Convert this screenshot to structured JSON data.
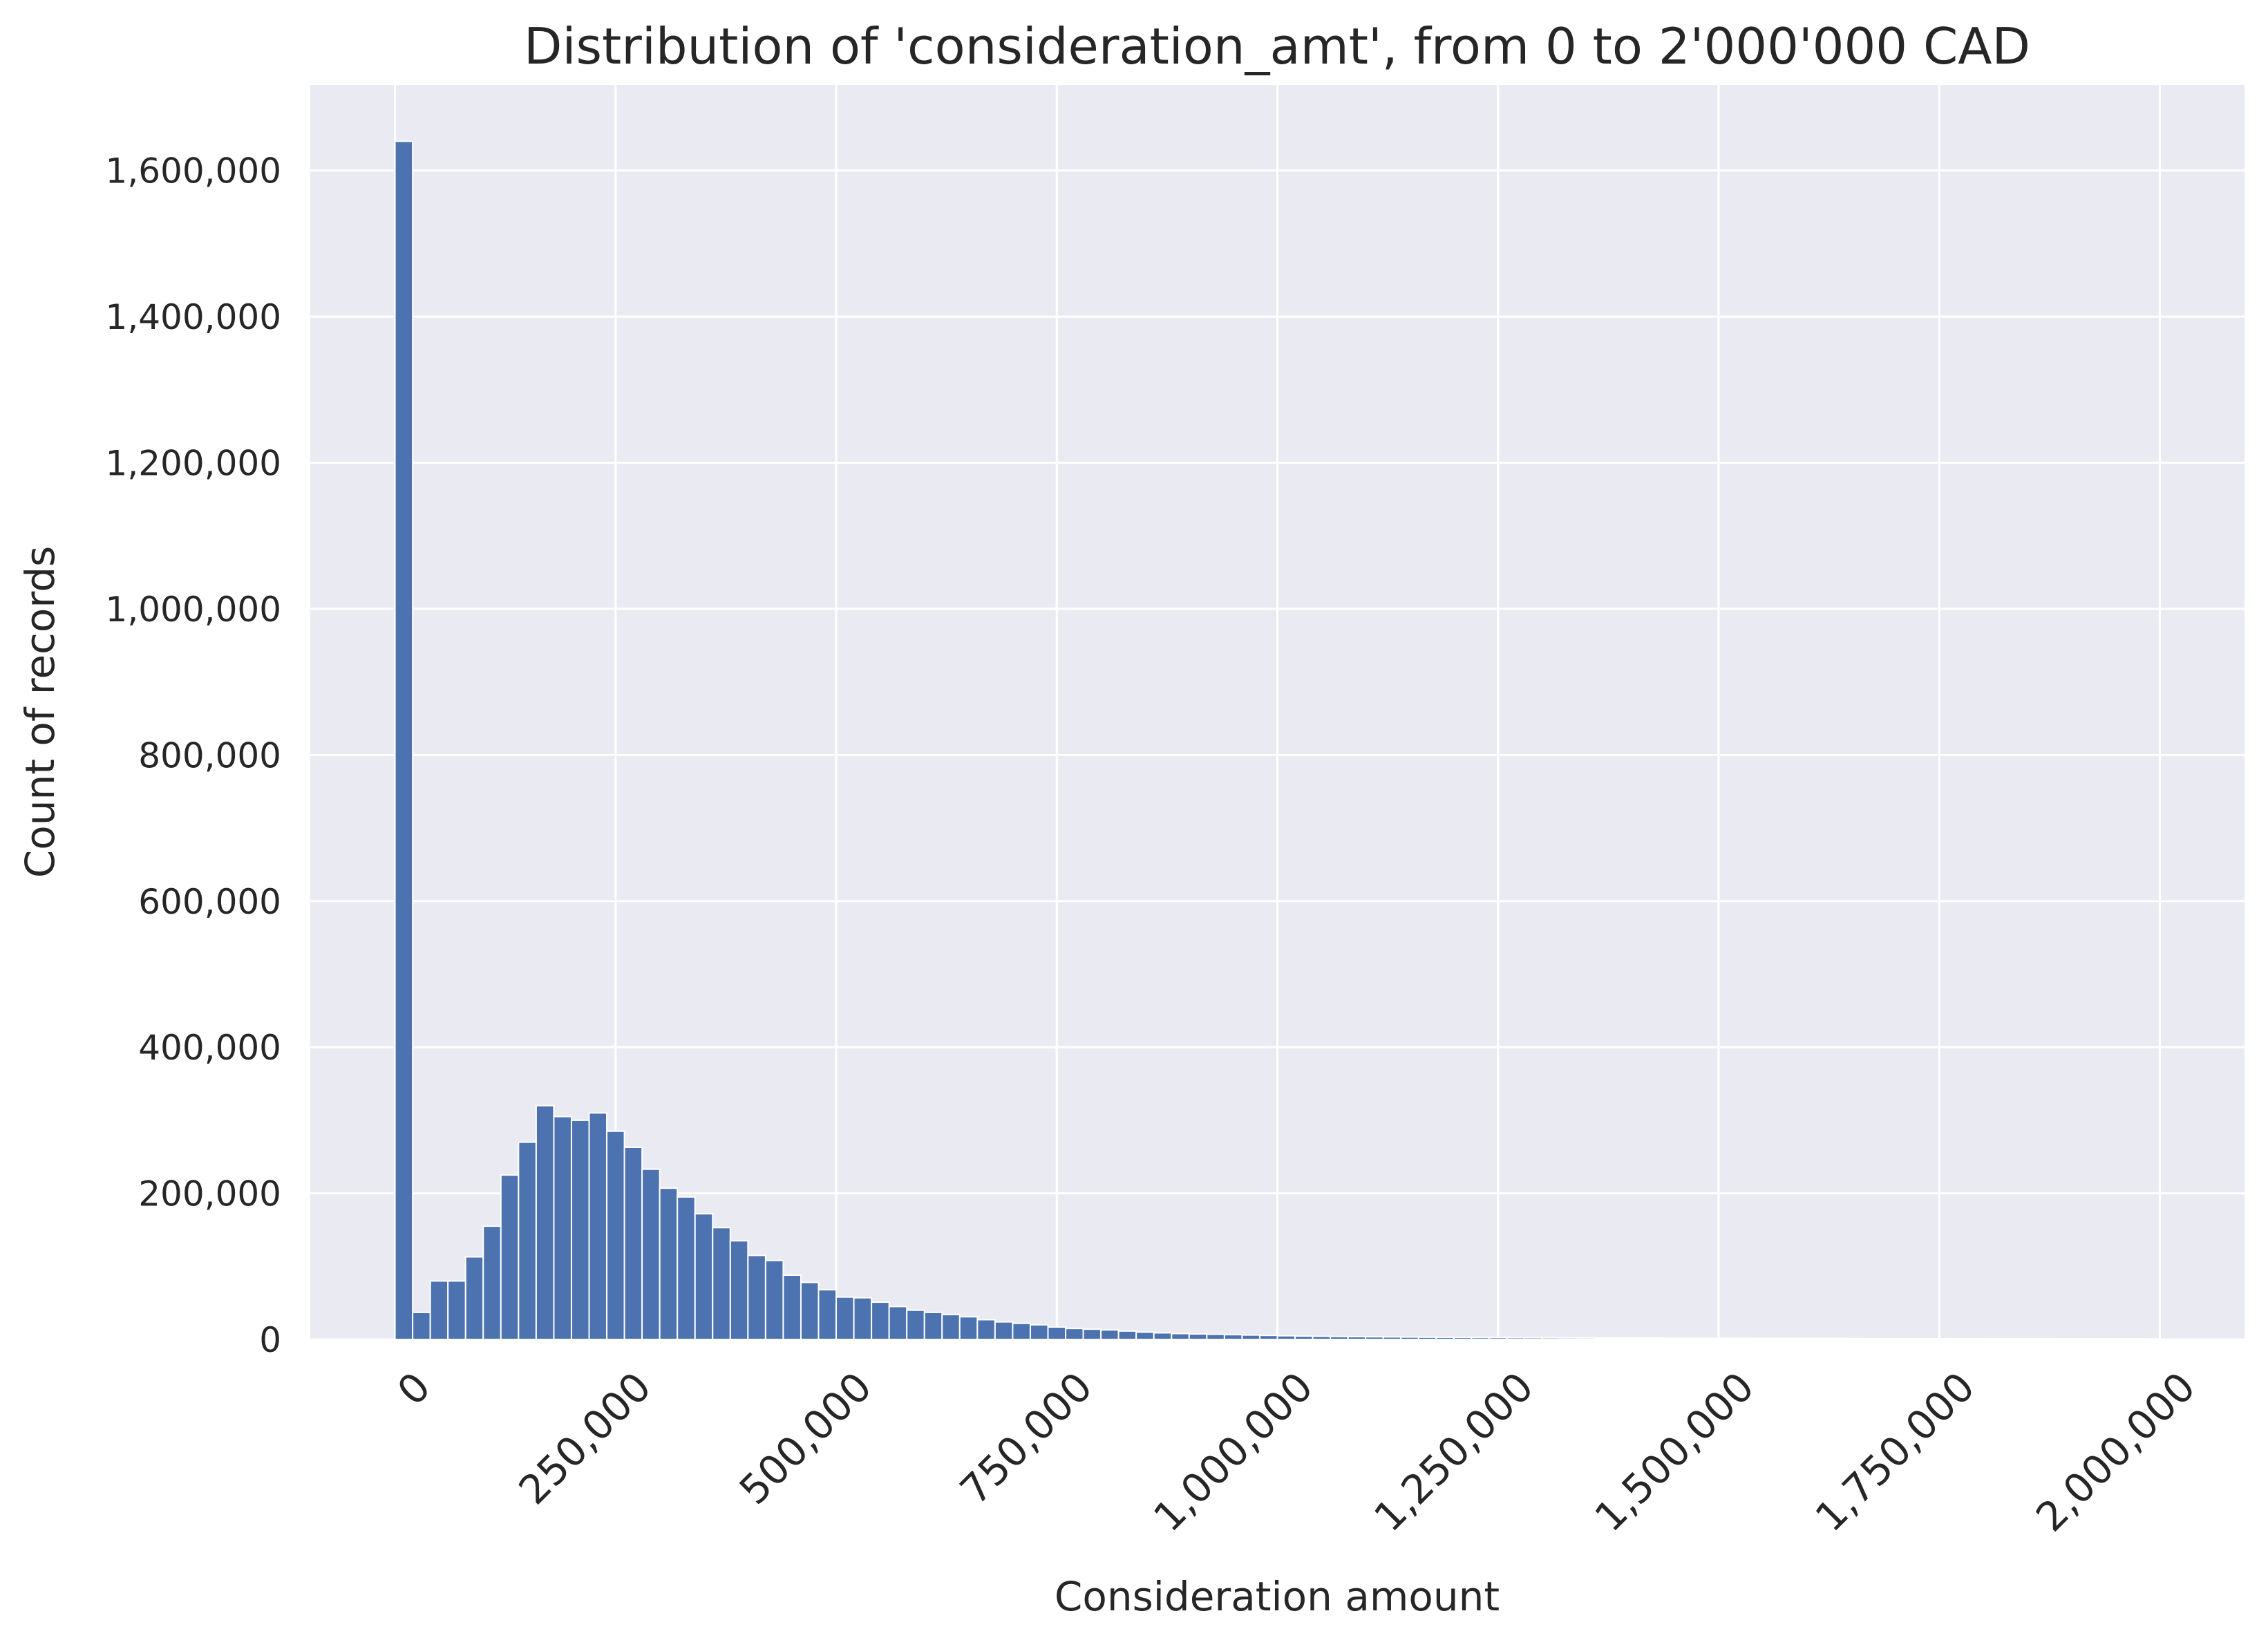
{
  "chart_data": {
    "type": "bar",
    "title": "Distribution of 'consideration_amt', from 0 to 2'000'000 CAD",
    "xlabel": "Consideration amount",
    "ylabel": "Count of records",
    "xlim": [
      -96000,
      2096000
    ],
    "ylim": [
      0,
      1717000
    ],
    "grid": true,
    "background": "#eaeaf2",
    "grid_color": "#ffffff",
    "bar_color": "#4c72b0",
    "bin_width": 20000,
    "x_ticks": [
      0,
      250000,
      500000,
      750000,
      1000000,
      1250000,
      1500000,
      1750000,
      2000000
    ],
    "x_tick_labels": [
      "0",
      "250,000",
      "500,000",
      "750,000",
      "1,000,000",
      "1,250,000",
      "1,500,000",
      "1,750,000",
      "2,000,000"
    ],
    "y_ticks": [
      0,
      200000,
      400000,
      600000,
      800000,
      1000000,
      1200000,
      1400000,
      1600000
    ],
    "y_tick_labels": [
      "0",
      "200,000",
      "400,000",
      "600,000",
      "800,000",
      "1,000,000",
      "1,200,000",
      "1,400,000",
      "1,600,000"
    ],
    "bin_starts": [
      0,
      20000,
      40000,
      60000,
      80000,
      100000,
      120000,
      140000,
      160000,
      180000,
      200000,
      220000,
      240000,
      260000,
      280000,
      300000,
      320000,
      340000,
      360000,
      380000,
      400000,
      420000,
      440000,
      460000,
      480000,
      500000,
      520000,
      540000,
      560000,
      580000,
      600000,
      620000,
      640000,
      660000,
      680000,
      700000,
      720000,
      740000,
      760000,
      780000,
      800000,
      820000,
      840000,
      860000,
      880000,
      900000,
      920000,
      940000,
      960000,
      980000,
      1000000,
      1020000,
      1040000,
      1060000,
      1080000,
      1100000,
      1120000,
      1140000,
      1160000,
      1180000,
      1200000,
      1220000,
      1240000,
      1260000,
      1280000,
      1300000,
      1320000,
      1340000,
      1360000,
      1380000,
      1400000,
      1420000,
      1440000,
      1460000,
      1480000,
      1500000,
      1520000,
      1540000,
      1560000,
      1580000,
      1600000,
      1620000,
      1640000,
      1660000,
      1680000,
      1700000,
      1720000,
      1740000,
      1760000,
      1780000,
      1800000,
      1820000,
      1840000,
      1860000,
      1880000,
      1900000,
      1920000,
      1940000,
      1960000,
      1980000
    ],
    "values": [
      1640000,
      37000,
      80000,
      80000,
      113000,
      155000,
      225000,
      270000,
      320000,
      305000,
      300000,
      310000,
      285000,
      263000,
      233000,
      207000,
      195000,
      172000,
      153000,
      135000,
      115000,
      108000,
      88000,
      78000,
      68000,
      58000,
      57000,
      51000,
      45000,
      40000,
      37000,
      34000,
      31000,
      27000,
      24000,
      22000,
      20000,
      17000,
      15000,
      14000,
      13000,
      11500,
      10000,
      9000,
      8000,
      7500,
      7000,
      6500,
      6000,
      5500,
      5000,
      4600,
      4300,
      4000,
      3800,
      3600,
      3400,
      3200,
      3000,
      2800,
      2700,
      2600,
      2500,
      2400,
      2300,
      2200,
      2100,
      2000,
      1900,
      1850,
      1800,
      1750,
      1700,
      1650,
      1600,
      1550,
      1500,
      1450,
      1400,
      1350,
      1300,
      1250,
      1200,
      1150,
      1100,
      1050,
      1000,
      980,
      960,
      940,
      920,
      900,
      880,
      860,
      840,
      820,
      800,
      780,
      760,
      740
    ]
  }
}
